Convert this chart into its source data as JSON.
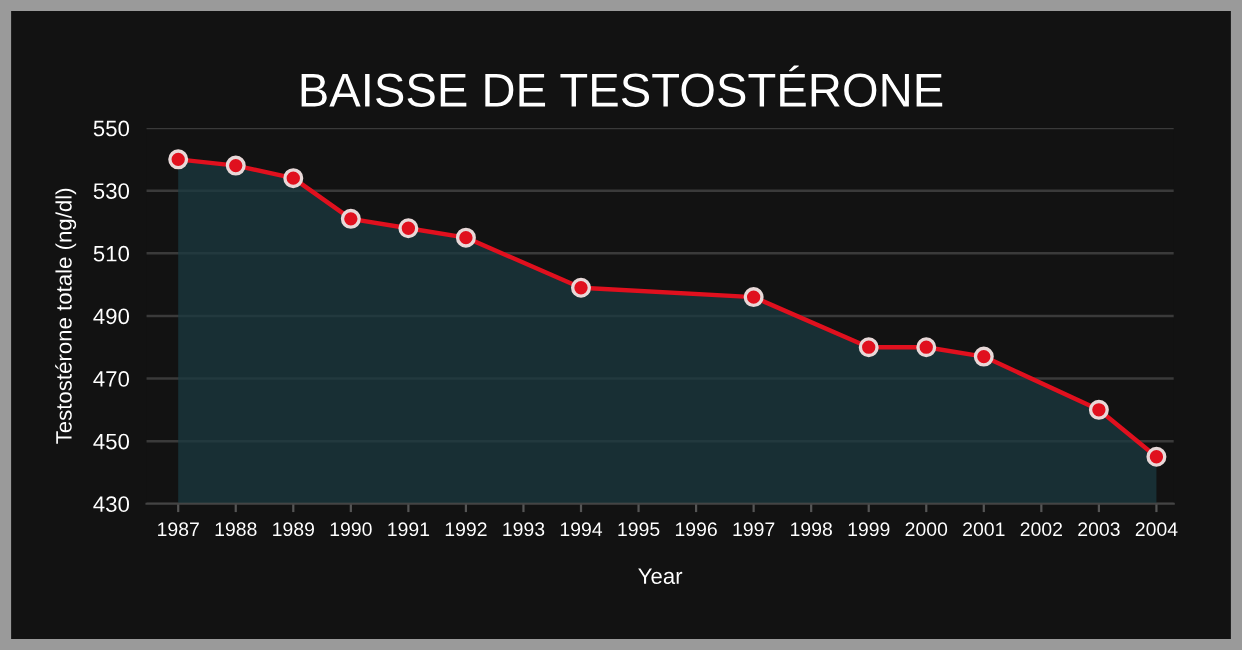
{
  "chart_data": {
    "type": "area",
    "title": "BAISSE DE TESTOSTÉRONE",
    "xlabel": "Year",
    "ylabel": "Testostérone totale (ng/dl)",
    "x": [
      1987,
      1988,
      1989,
      1990,
      1991,
      1992,
      1994,
      1997,
      1999,
      2000,
      2001,
      2003,
      2004
    ],
    "series": [
      {
        "color": "#e0101e",
        "values": [
          540,
          538,
          534,
          521,
          518,
          515,
          499,
          496,
          480,
          480,
          477,
          460,
          445
        ]
      }
    ],
    "xlim": [
      1986.45,
      2004.3
    ],
    "xticks": [
      1987,
      1988,
      1989,
      1990,
      1991,
      1992,
      1993,
      1994,
      1995,
      1996,
      1997,
      1998,
      1999,
      2000,
      2001,
      2002,
      2003,
      2004
    ],
    "ylim": [
      430,
      550
    ],
    "yticks": [
      430,
      450,
      470,
      490,
      510,
      530,
      550
    ],
    "grid": "y",
    "marker": "circle",
    "line_style": "solid",
    "legend": false
  }
}
